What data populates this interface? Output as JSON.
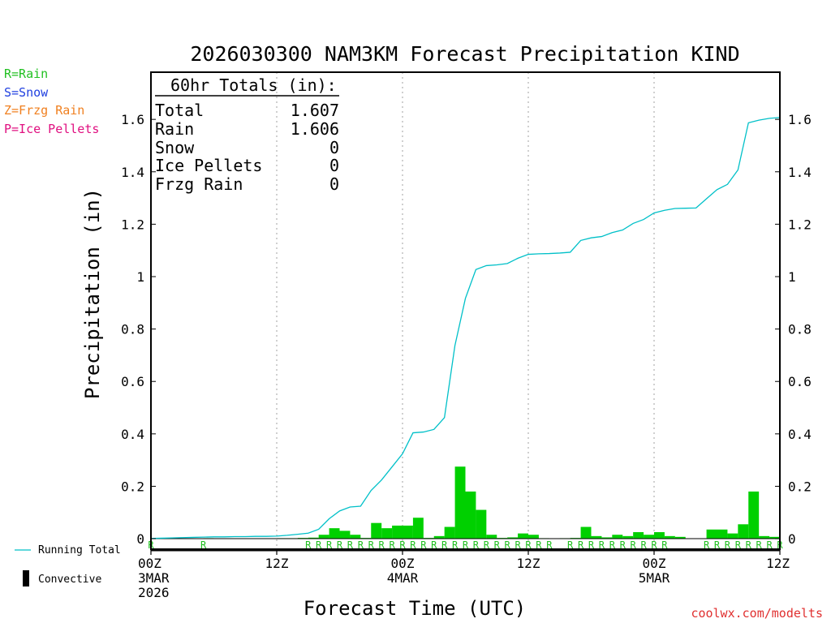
{
  "chart_data": {
    "type": "bar",
    "title": "2026030300 NAM3KM Forecast Precipitation KIND",
    "xlabel": "Forecast Time (UTC)",
    "ylabel": "Precipitation (in)",
    "ylim": [
      -0.04,
      1.78
    ],
    "xlim": [
      0,
      60
    ],
    "y_ticks": [
      0,
      0.2,
      0.4,
      0.6,
      0.8,
      1,
      1.2,
      1.4,
      1.6
    ],
    "y_tick_labels": [
      "0",
      "0.2",
      "0.4",
      "0.6",
      "0.8",
      "1",
      "1.2",
      "1.4",
      "1.6"
    ],
    "x_ticks": [
      0,
      12,
      24,
      36,
      48,
      60
    ],
    "x_tick_labels": [
      {
        "hour": 0,
        "lines": [
          "00Z",
          "3MAR",
          "2026"
        ]
      },
      {
        "hour": 12,
        "lines": [
          "12Z"
        ]
      },
      {
        "hour": 24,
        "lines": [
          "00Z",
          "4MAR"
        ]
      },
      {
        "hour": 36,
        "lines": [
          "12Z"
        ]
      },
      {
        "hour": 48,
        "lines": [
          "00Z",
          "5MAR"
        ]
      },
      {
        "hour": 60,
        "lines": [
          "12Z"
        ]
      }
    ],
    "gridlines_x": [
      12,
      24,
      36,
      48
    ],
    "hourly_precip": [
      0.001,
      0.001,
      0.001,
      0.001,
      0.001,
      0.002,
      0.001,
      0.001,
      0.001,
      0.001,
      0.001,
      0.001,
      0.002,
      0.002,
      0.003,
      0.004,
      0.015,
      0.04,
      0.03,
      0.015,
      0.003,
      0.06,
      0.04,
      0.05,
      0.05,
      0.08,
      0.003,
      0.01,
      0.045,
      0.275,
      0.18,
      0.11,
      0.015,
      0.003,
      0.005,
      0.02,
      0.015,
      0.002,
      0.001,
      0.002,
      0.003,
      0.045,
      0.01,
      0.005,
      0.015,
      0.01,
      0.025,
      0.015,
      0.025,
      0.01,
      0.007,
      0.001,
      0.001,
      0.035,
      0.035,
      0.02,
      0.055,
      0.18,
      0.01,
      0.007
    ],
    "running_total_hours": [
      0,
      1,
      2,
      3,
      4,
      5,
      6,
      7,
      8,
      9,
      10,
      11,
      12,
      13,
      14,
      15,
      16,
      17,
      18,
      19,
      20,
      21,
      22,
      23,
      24,
      25,
      26,
      27,
      28,
      29,
      30,
      31,
      32,
      33,
      34,
      35,
      36,
      37,
      38,
      39,
      40,
      41,
      42,
      43,
      44,
      45,
      46,
      47,
      48,
      49,
      50,
      51,
      52,
      53,
      54,
      55,
      56,
      57,
      58,
      59,
      60
    ],
    "running_total": [
      0.001,
      0.002,
      0.003,
      0.004,
      0.005,
      0.006,
      0.007,
      0.007,
      0.008,
      0.008,
      0.009,
      0.009,
      0.01,
      0.013,
      0.017,
      0.021,
      0.036,
      0.076,
      0.106,
      0.121,
      0.124,
      0.184,
      0.224,
      0.274,
      0.324,
      0.404,
      0.407,
      0.417,
      0.462,
      0.737,
      0.917,
      1.027,
      1.042,
      1.045,
      1.05,
      1.07,
      1.085,
      1.087,
      1.088,
      1.09,
      1.093,
      1.138,
      1.148,
      1.153,
      1.168,
      1.178,
      1.203,
      1.218,
      1.243,
      1.253,
      1.26,
      1.261,
      1.262,
      1.297,
      1.332,
      1.352,
      1.407,
      1.587,
      1.597,
      1.604,
      1.607
    ],
    "precip_type_hours": [
      0,
      5,
      15,
      16,
      17,
      18,
      19,
      20,
      21,
      22,
      23,
      24,
      25,
      26,
      27,
      28,
      29,
      30,
      31,
      32,
      33,
      34,
      35,
      36,
      37,
      38,
      40,
      41,
      42,
      43,
      44,
      45,
      46,
      47,
      48,
      49,
      53,
      54,
      55,
      56,
      57,
      58,
      59,
      60
    ],
    "precip_type_code": "R",
    "series": [
      {
        "name": "Hourly Precipitation",
        "style": "bar",
        "color": "#00d000"
      },
      {
        "name": "Running Total",
        "style": "line",
        "color": "#00c0c8"
      }
    ]
  },
  "totals_box": {
    "heading": "60hr Totals (in):",
    "rows": [
      {
        "label": "Total",
        "value": "1.607"
      },
      {
        "label": "Rain",
        "value": "1.606"
      },
      {
        "label": "Snow",
        "value": "0"
      },
      {
        "label": "Ice Pellets",
        "value": "0"
      },
      {
        "label": "Frzg Rain",
        "value": "0"
      }
    ]
  },
  "type_legend": [
    {
      "text": "R=Rain",
      "color": "#20c020"
    },
    {
      "text": "S=Snow",
      "color": "#2040e0"
    },
    {
      "text": "Z=Frzg Rain",
      "color": "#f08020"
    },
    {
      "text": "P=Ice Pellets",
      "color": "#e01080"
    }
  ],
  "bottom_legend": {
    "running_total": "Running Total",
    "convective": "Convective"
  },
  "credit": "coolwx.com/modelts",
  "colors": {
    "bar": "#00d000",
    "line": "#00c0c8",
    "type_code": "#20c020",
    "grid": "#a0a0a0",
    "credit": "#e03030"
  }
}
